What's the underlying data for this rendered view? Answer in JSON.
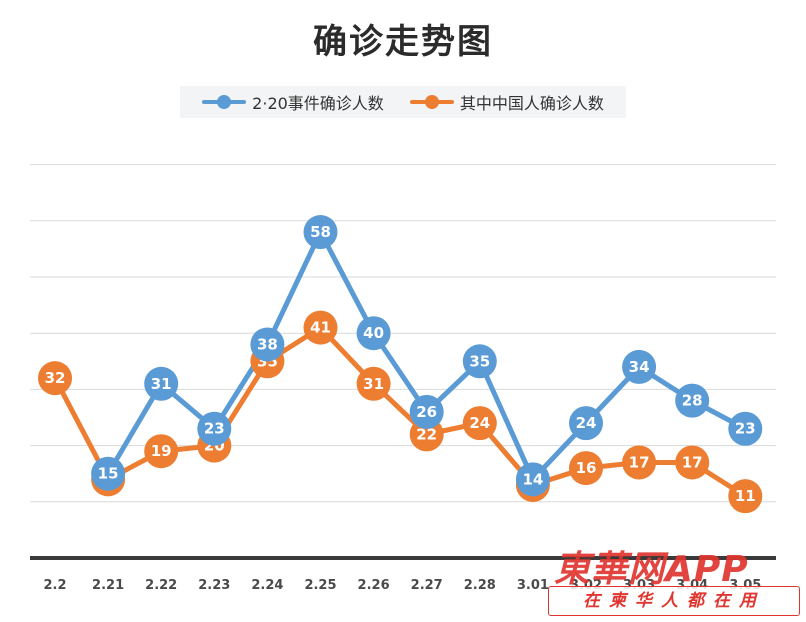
{
  "chart_data": {
    "type": "line",
    "title": "确诊走势图",
    "categories": [
      "2.2",
      "2.21",
      "2.22",
      "2.23",
      "2.24",
      "2.25",
      "2.26",
      "2.27",
      "2.28",
      "3.01",
      "3.02",
      "3.03",
      "3.04",
      "3.05"
    ],
    "series": [
      {
        "name": "2·20事件确诊人数",
        "color": "#5b9bd5",
        "values": [
          null,
          15,
          31,
          23,
          38,
          58,
          40,
          26,
          35,
          14,
          24,
          34,
          28,
          23
        ]
      },
      {
        "name": "其中中国人确诊人数",
        "color": "#ed7d31",
        "values": [
          32,
          14,
          19,
          20,
          35,
          41,
          31,
          22,
          24,
          13,
          16,
          17,
          17,
          11
        ]
      }
    ],
    "xlabel": "",
    "ylabel": "",
    "ylim": [
      0,
      70
    ],
    "grid": true,
    "legend": "top"
  },
  "watermark": {
    "brand": "東華网APP",
    "slogan": "在柬华人都在用"
  }
}
